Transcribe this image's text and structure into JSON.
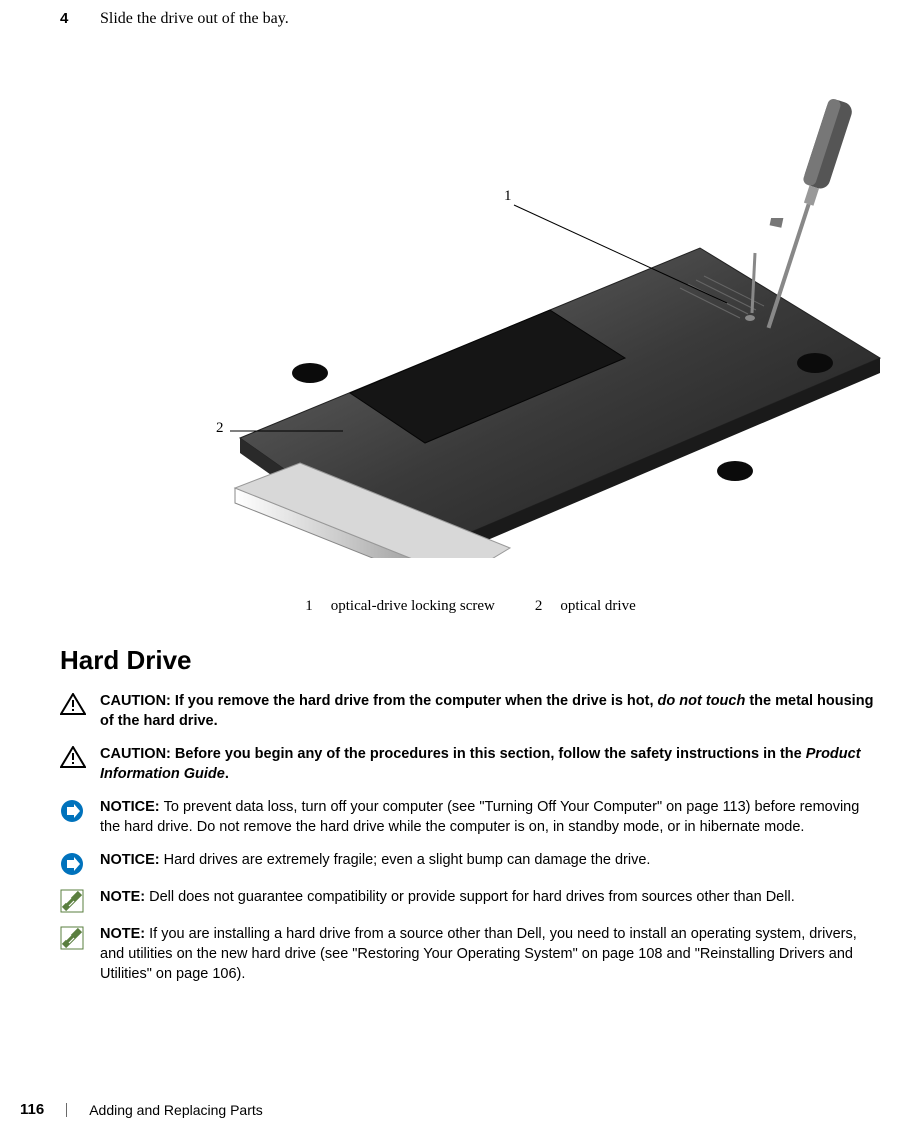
{
  "step": {
    "number": "4",
    "text": "Slide the drive out of the bay."
  },
  "figure": {
    "callouts": {
      "c1": "1",
      "c2": "2"
    }
  },
  "legend": {
    "items": [
      {
        "num": "1",
        "label": "optical-drive locking screw"
      },
      {
        "num": "2",
        "label": "optical drive"
      }
    ]
  },
  "heading": "Hard Drive",
  "callouts": [
    {
      "icon": "caution",
      "label": "CAUTION: ",
      "segments": [
        {
          "text": "If you remove the hard drive from the computer when the drive is hot, ",
          "style": "bold"
        },
        {
          "text": "do not touch",
          "style": "bold-italic"
        },
        {
          "text": " the metal housing of the hard drive.",
          "style": "bold"
        }
      ]
    },
    {
      "icon": "caution",
      "label": "CAUTION: ",
      "segments": [
        {
          "text": "Before you begin any of the procedures in this section, follow the safety instructions in the ",
          "style": "bold"
        },
        {
          "text": "Product Information Guide",
          "style": "bold-italic"
        },
        {
          "text": ".",
          "style": "bold"
        }
      ]
    },
    {
      "icon": "notice",
      "label": "NOTICE: ",
      "segments": [
        {
          "text": "To prevent data loss, turn off your computer (see \"Turning Off Your Computer\" on page 113) before removing the hard drive. Do not remove the hard drive while the computer is on, in standby mode, or in hibernate mode.",
          "style": "normal"
        }
      ]
    },
    {
      "icon": "notice",
      "label": "NOTICE: ",
      "segments": [
        {
          "text": "Hard drives are extremely fragile; even a slight bump can damage the drive.",
          "style": "normal"
        }
      ]
    },
    {
      "icon": "note",
      "label": "NOTE: ",
      "segments": [
        {
          "text": "Dell does not guarantee compatibility or provide support for hard drives from sources other than Dell.",
          "style": "normal"
        }
      ]
    },
    {
      "icon": "note",
      "label": "NOTE: ",
      "segments": [
        {
          "text": "If you are installing a hard drive from a source other than Dell, you need to install an operating system, drivers, and utilities on the new hard drive (see \"Restoring Your Operating System\" on page 108 and \"Reinstalling Drivers and Utilities\" on page 106).",
          "style": "normal"
        }
      ]
    }
  ],
  "footer": {
    "page": "116",
    "title": "Adding and Replacing Parts"
  },
  "colors": {
    "notice_blue": "#0072bc",
    "note_green": "#5a7f3f",
    "caution_black": "#000000"
  }
}
